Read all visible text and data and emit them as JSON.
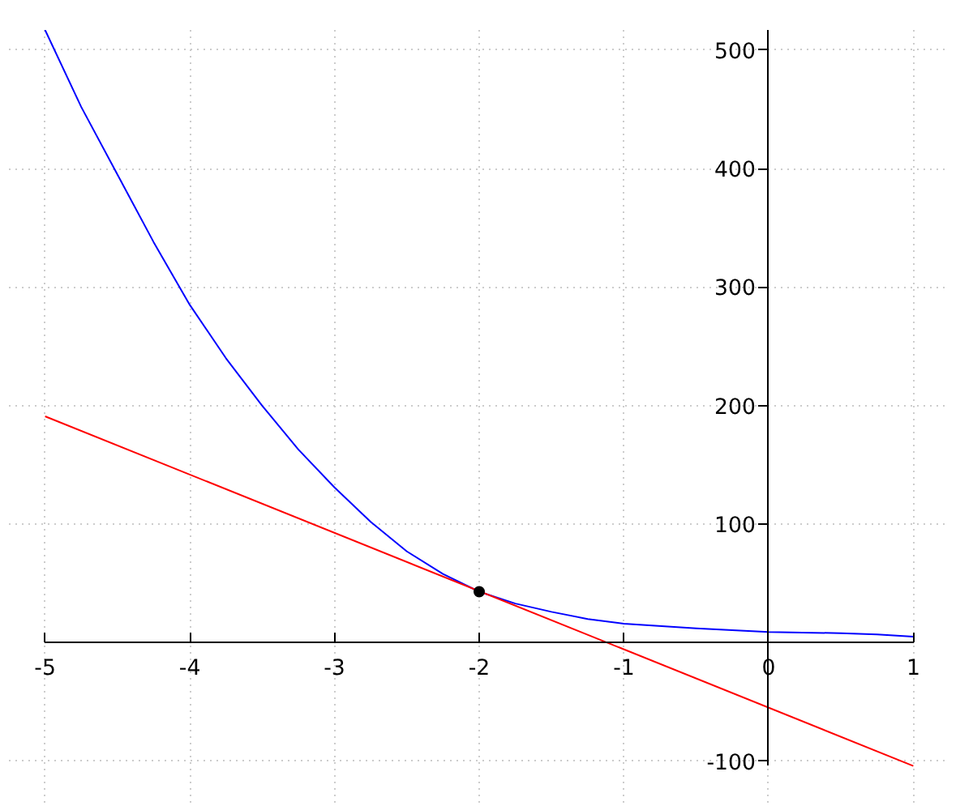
{
  "chart_data": {
    "type": "line",
    "xlim": [
      -5,
      1
    ],
    "ylim": [
      -104,
      517
    ],
    "xticks": [
      -5,
      -4,
      -3,
      -2,
      -1,
      0,
      1
    ],
    "yticks": [
      -100,
      100,
      200,
      300,
      400,
      500
    ],
    "grid": true,
    "series": [
      {
        "color": "#0000ff",
        "x": [
          -5,
          -4.75,
          -4.5,
          -4.25,
          -4,
          -3.75,
          -3.5,
          -3.25,
          -3,
          -2.75,
          -2.5,
          -2.25,
          -2,
          -1.75,
          -1.5,
          -1.25,
          -1,
          -0.5,
          0,
          0.5,
          0.75,
          1
        ],
        "values": [
          517,
          452,
          395,
          338,
          285,
          240,
          200,
          163,
          131,
          102,
          77,
          58,
          43,
          33,
          26,
          20,
          16,
          12,
          9,
          8,
          7,
          5
        ]
      },
      {
        "color": "#ff0000",
        "x": [
          -5,
          1
        ],
        "values": [
          191,
          -104
        ]
      },
      {
        "type": "scatter",
        "color": "#000000",
        "x": [
          -2
        ],
        "values": [
          43
        ],
        "marker": "circle"
      }
    ]
  }
}
